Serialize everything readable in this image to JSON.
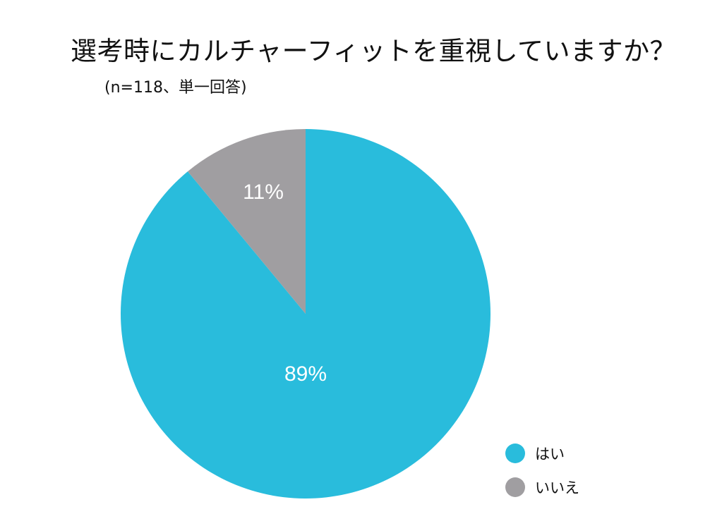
{
  "title": "選考時にカルチャーフィットを重視していますか？",
  "subtitle": "(n=118、単一回答)",
  "colors": {
    "yes": "#29bcdc",
    "no": "#a09ea1",
    "label_text": "#ffffff",
    "background": "#ffffff"
  },
  "legend": [
    {
      "label": "はい",
      "color": "#29bcdc"
    },
    {
      "label": "いいえ",
      "color": "#a09ea1"
    }
  ],
  "slice_labels": {
    "yes": "89%",
    "no": "11%"
  },
  "chart_data": {
    "type": "pie",
    "title": "選考時にカルチャーフィットを重視していますか？",
    "subtitle": "(n=118、単一回答)",
    "categories": [
      "はい",
      "いいえ"
    ],
    "values": [
      89,
      11
    ],
    "unit": "%",
    "colors": [
      "#29bcdc",
      "#a09ea1"
    ],
    "start_angle": "12 o'clock, clockwise",
    "legend_position": "bottom-right",
    "data_labels": [
      "89%",
      "11%"
    ]
  }
}
